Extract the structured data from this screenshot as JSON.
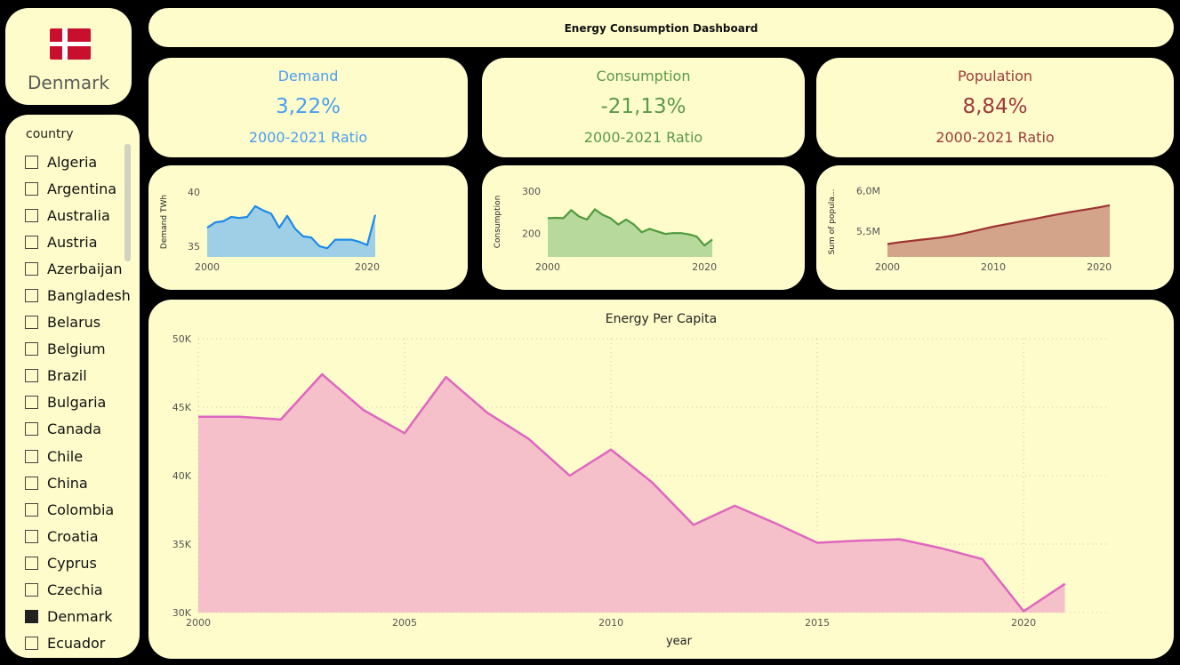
{
  "header": {
    "title": "Energy Consumption Dashboard"
  },
  "selected_country": {
    "name": "Denmark",
    "flag_icon": "denmark-flag-icon"
  },
  "slicer": {
    "title": "country",
    "items": [
      {
        "label": "Algeria",
        "checked": false
      },
      {
        "label": "Argentina",
        "checked": false
      },
      {
        "label": "Australia",
        "checked": false
      },
      {
        "label": "Austria",
        "checked": false
      },
      {
        "label": "Azerbaijan",
        "checked": false
      },
      {
        "label": "Bangladesh",
        "checked": false
      },
      {
        "label": "Belarus",
        "checked": false
      },
      {
        "label": "Belgium",
        "checked": false
      },
      {
        "label": "Brazil",
        "checked": false
      },
      {
        "label": "Bulgaria",
        "checked": false
      },
      {
        "label": "Canada",
        "checked": false
      },
      {
        "label": "Chile",
        "checked": false
      },
      {
        "label": "China",
        "checked": false
      },
      {
        "label": "Colombia",
        "checked": false
      },
      {
        "label": "Croatia",
        "checked": false
      },
      {
        "label": "Cyprus",
        "checked": false
      },
      {
        "label": "Czechia",
        "checked": false
      },
      {
        "label": "Denmark",
        "checked": true
      },
      {
        "label": "Ecuador",
        "checked": false
      }
    ]
  },
  "kpis": {
    "demand": {
      "label": "Demand",
      "value": "3,22%",
      "sub": "2000-2021 Ratio",
      "color": "#4a9ef0"
    },
    "consumption": {
      "label": "Consumption",
      "value": "-21,13%",
      "sub": "2000-2021 Ratio",
      "color": "#5a9a4a"
    },
    "population": {
      "label": "Population",
      "value": "8,84%",
      "sub": "2000-2021 Ratio",
      "color": "#9e3a3a"
    }
  },
  "chart_data": [
    {
      "id": "demand",
      "type": "area",
      "ylabel": "Demand TWh",
      "xlabel": "",
      "ylim": [
        34,
        40.5
      ],
      "xlim": [
        2000,
        2021
      ],
      "yticks": [
        {
          "v": 35,
          "label": "35"
        },
        {
          "v": 40,
          "label": "40"
        }
      ],
      "xticks": [
        {
          "v": 2000,
          "label": "2000"
        },
        {
          "v": 2020,
          "label": "2020"
        }
      ],
      "line_color": "#1e8ae8",
      "fill_color": "#9fcfe6",
      "x": [
        2000,
        2001,
        2002,
        2003,
        2004,
        2005,
        2006,
        2007,
        2008,
        2009,
        2010,
        2011,
        2012,
        2013,
        2014,
        2015,
        2016,
        2017,
        2018,
        2019,
        2020,
        2021
      ],
      "values": [
        36.7,
        37.2,
        37.3,
        37.7,
        37.6,
        37.7,
        38.7,
        38.3,
        38.0,
        36.7,
        37.8,
        36.6,
        35.9,
        35.8,
        35.0,
        34.8,
        35.6,
        35.6,
        35.6,
        35.4,
        35.1,
        37.9
      ]
    },
    {
      "id": "consumption",
      "type": "area",
      "ylabel": "Consumption",
      "xlabel": "",
      "ylim": [
        145,
        310
      ],
      "xlim": [
        2000,
        2021
      ],
      "yticks": [
        {
          "v": 200,
          "label": "200"
        },
        {
          "v": 300,
          "label": "300"
        }
      ],
      "xticks": [
        {
          "v": 2000,
          "label": "2000"
        },
        {
          "v": 2020,
          "label": "2020"
        }
      ],
      "line_color": "#4e9a3e",
      "fill_color": "#b8d99c",
      "x": [
        2000,
        2001,
        2002,
        2003,
        2004,
        2005,
        2006,
        2007,
        2008,
        2009,
        2010,
        2011,
        2012,
        2013,
        2014,
        2015,
        2016,
        2017,
        2018,
        2019,
        2020,
        2021
      ],
      "values": [
        236,
        237,
        236,
        255,
        240,
        233,
        257,
        244,
        236,
        221,
        233,
        221,
        203,
        211,
        205,
        199,
        201,
        201,
        198,
        193,
        172,
        186
      ]
    },
    {
      "id": "population",
      "type": "area",
      "ylabel": "Sum of popula...",
      "xlabel": "",
      "ylim": [
        5180000,
        6050000
      ],
      "xlim": [
        2000,
        2021
      ],
      "yticks": [
        {
          "v": 5500000,
          "label": "5,5M"
        },
        {
          "v": 6000000,
          "label": "6,0M"
        }
      ],
      "xticks": [
        {
          "v": 2000,
          "label": "2000"
        },
        {
          "v": 2010,
          "label": "2010"
        },
        {
          "v": 2020,
          "label": "2020"
        }
      ],
      "line_color": "#9e3232",
      "fill_color": "#d3a48a",
      "x": [
        2000,
        2001,
        2002,
        2003,
        2004,
        2005,
        2006,
        2007,
        2008,
        2009,
        2010,
        2011,
        2012,
        2013,
        2014,
        2015,
        2016,
        2017,
        2018,
        2019,
        2020,
        2021
      ],
      "values": [
        5340000,
        5360000,
        5375000,
        5390000,
        5405000,
        5420000,
        5440000,
        5465000,
        5495000,
        5525000,
        5555000,
        5580000,
        5605000,
        5630000,
        5655000,
        5680000,
        5705000,
        5730000,
        5752000,
        5772000,
        5795000,
        5820000
      ]
    },
    {
      "id": "energy-per-capita",
      "type": "area",
      "title": "Energy Per Capita",
      "xlabel": "year",
      "ylabel": "",
      "ylim": [
        30000,
        50000
      ],
      "xlim": [
        2000,
        2022
      ],
      "yticks": [
        {
          "v": 30000,
          "label": "30K"
        },
        {
          "v": 35000,
          "label": "35K"
        },
        {
          "v": 40000,
          "label": "40K"
        },
        {
          "v": 45000,
          "label": "45K"
        },
        {
          "v": 50000,
          "label": "50K"
        }
      ],
      "xticks": [
        {
          "v": 2000,
          "label": "2000"
        },
        {
          "v": 2005,
          "label": "2005"
        },
        {
          "v": 2010,
          "label": "2010"
        },
        {
          "v": 2015,
          "label": "2015"
        },
        {
          "v": 2020,
          "label": "2020"
        }
      ],
      "grid": true,
      "line_color": "#e066c0",
      "fill_color": "#f5c0c9",
      "x": [
        2000,
        2001,
        2002,
        2003,
        2004,
        2005,
        2006,
        2007,
        2008,
        2009,
        2010,
        2011,
        2012,
        2013,
        2014,
        2015,
        2016,
        2017,
        2018,
        2019,
        2020,
        2021
      ],
      "values": [
        44300,
        44300,
        44100,
        47400,
        44800,
        43100,
        47200,
        44600,
        42700,
        40000,
        41900,
        39500,
        36400,
        37800,
        36500,
        35100,
        35250,
        35350,
        34700,
        33900,
        30100,
        32100
      ]
    }
  ]
}
